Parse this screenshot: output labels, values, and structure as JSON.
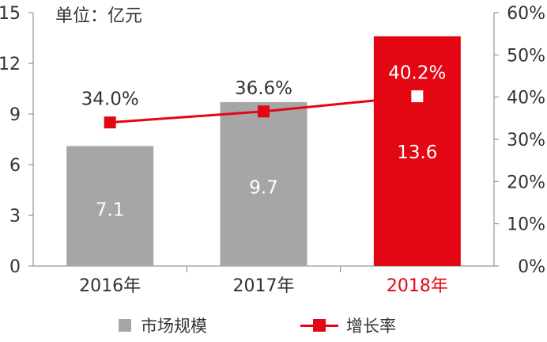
{
  "unit_label": "单位：亿元",
  "chart_data": {
    "type": "bar+line",
    "categories": [
      "2016年",
      "2017年",
      "2018年"
    ],
    "series": [
      {
        "name": "市场规模",
        "type": "bar",
        "axis": "left",
        "values": [
          7.1,
          9.7,
          13.6
        ],
        "labels": [
          "7.1",
          "9.7",
          "13.6"
        ]
      },
      {
        "name": "增长率",
        "type": "line",
        "axis": "right",
        "values": [
          34.0,
          36.6,
          40.2
        ],
        "labels": [
          "34.0%",
          "36.6%",
          "40.2%"
        ]
      }
    ],
    "y_left": {
      "range": [
        0,
        15
      ],
      "ticks": [
        "0",
        "3",
        "6",
        "9",
        "12",
        "15"
      ]
    },
    "y_right": {
      "range": [
        0,
        60
      ],
      "ticks": [
        "0%",
        "10%",
        "20%",
        "30%",
        "40%",
        "50%",
        "60%"
      ]
    },
    "highlight_index": 2,
    "grid": false,
    "legend_position": "bottom"
  },
  "colors": {
    "bar": "#a6a6a6",
    "highlight": "#e30613",
    "line": "#e30613",
    "axis": "#808080",
    "text": "#333333",
    "label_on_bar": "#ffffff"
  }
}
